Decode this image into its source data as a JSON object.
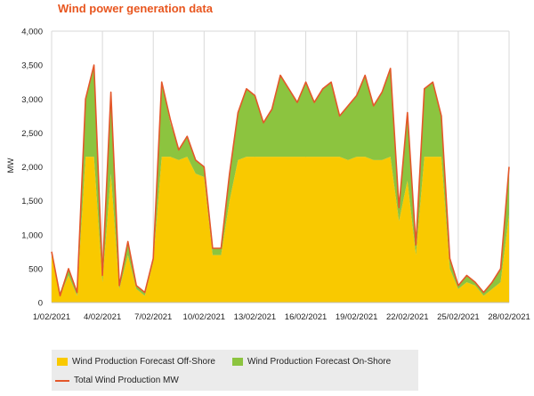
{
  "title": "Wind power generation data",
  "colors": {
    "offshore": "#f9c900",
    "onshore": "#8cc43f",
    "total": "#e4572a",
    "title": "#e8561f",
    "grid": "#d9d9d9",
    "legend_bg": "#ebebeb"
  },
  "legend": {
    "offshore": "Wind Production Forecast Off-Shore",
    "onshore": "Wind Production Forecast On-Shore",
    "total": "Total Wind Production MW"
  },
  "chart_data": {
    "type": "area",
    "title": "Wind power generation data",
    "xlabel": "",
    "ylabel": "MW",
    "ylim": [
      0,
      4000
    ],
    "xlim": [
      "1/02/2021",
      "28/02/2021"
    ],
    "y_ticks": [
      "0",
      "500",
      "1,000",
      "1,500",
      "2,000",
      "2,500",
      "3,000",
      "3,500",
      "4,000"
    ],
    "x_ticks": [
      "1/02/2021",
      "4/02/2021",
      "7/02/2021",
      "10/02/2021",
      "13/02/2021",
      "16/02/2021",
      "19/02/2021",
      "22/02/2021",
      "25/02/2021",
      "28/02/2021"
    ],
    "grid": "vertical",
    "legend_position": "bottom-left",
    "x": [
      "1/02/2021",
      "1/02/2021 12:00",
      "2/02/2021",
      "2/02/2021 12:00",
      "3/02/2021",
      "3/02/2021 12:00",
      "4/02/2021",
      "4/02/2021 12:00",
      "5/02/2021",
      "5/02/2021 12:00",
      "6/02/2021",
      "6/02/2021 12:00",
      "7/02/2021",
      "7/02/2021 12:00",
      "8/02/2021",
      "8/02/2021 12:00",
      "9/02/2021",
      "9/02/2021 12:00",
      "10/02/2021",
      "10/02/2021 12:00",
      "11/02/2021",
      "11/02/2021 12:00",
      "12/02/2021",
      "12/02/2021 12:00",
      "13/02/2021",
      "13/02/2021 12:00",
      "14/02/2021",
      "14/02/2021 12:00",
      "15/02/2021",
      "15/02/2021 12:00",
      "16/02/2021",
      "16/02/2021 12:00",
      "17/02/2021",
      "17/02/2021 12:00",
      "18/02/2021",
      "18/02/2021 12:00",
      "19/02/2021",
      "19/02/2021 12:00",
      "20/02/2021",
      "20/02/2021 12:00",
      "21/02/2021",
      "21/02/2021 12:00",
      "22/02/2021",
      "22/02/2021 12:00",
      "23/02/2021",
      "23/02/2021 12:00",
      "24/02/2021",
      "24/02/2021 12:00",
      "25/02/2021",
      "25/02/2021 12:00",
      "26/02/2021",
      "26/02/2021 12:00",
      "27/02/2021",
      "27/02/2021 12:00",
      "28/02/2021"
    ],
    "series": [
      {
        "name": "Wind Production Forecast Off-Shore",
        "values": [
          700,
          100,
          400,
          100,
          2150,
          2150,
          300,
          1900,
          200,
          700,
          200,
          100,
          600,
          2150,
          2150,
          2100,
          2150,
          1900,
          1850,
          700,
          700,
          1500,
          2100,
          2150,
          2150,
          2150,
          2150,
          2150,
          2150,
          2150,
          2150,
          2150,
          2150,
          2150,
          2150,
          2100,
          2150,
          2150,
          2100,
          2100,
          2150,
          1200,
          1800,
          700,
          2150,
          2150,
          2150,
          500,
          200,
          300,
          250,
          100,
          200,
          300,
          1300
        ]
      },
      {
        "name": "Wind Production Forecast On-Shore",
        "values": [
          50,
          50,
          100,
          50,
          850,
          1350,
          100,
          1100,
          50,
          200,
          50,
          50,
          50,
          1100,
          500,
          150,
          300,
          200,
          150,
          100,
          100,
          400,
          700,
          1000,
          900,
          500,
          700,
          1200,
          1000,
          800,
          1100,
          800,
          1000,
          1100,
          600,
          800,
          900,
          1200,
          800,
          1000,
          1300,
          200,
          1000,
          150,
          1000,
          1100,
          600,
          150,
          50,
          100,
          50,
          50,
          100,
          200,
          700
        ]
      },
      {
        "name": "Total Wind Production MW",
        "values": [
          750,
          100,
          500,
          150,
          3000,
          3500,
          400,
          3100,
          250,
          900,
          250,
          150,
          650,
          3250,
          2700,
          2250,
          2450,
          2100,
          2000,
          800,
          800,
          1900,
          2800,
          3150,
          3050,
          2650,
          2850,
          3350,
          3150,
          2950,
          3250,
          2950,
          3150,
          3250,
          2750,
          2900,
          3050,
          3350,
          2900,
          3100,
          3450,
          1400,
          2800,
          850,
          3150,
          3250,
          2750,
          650,
          250,
          400,
          300,
          150,
          300,
          500,
          2000
        ]
      }
    ]
  }
}
